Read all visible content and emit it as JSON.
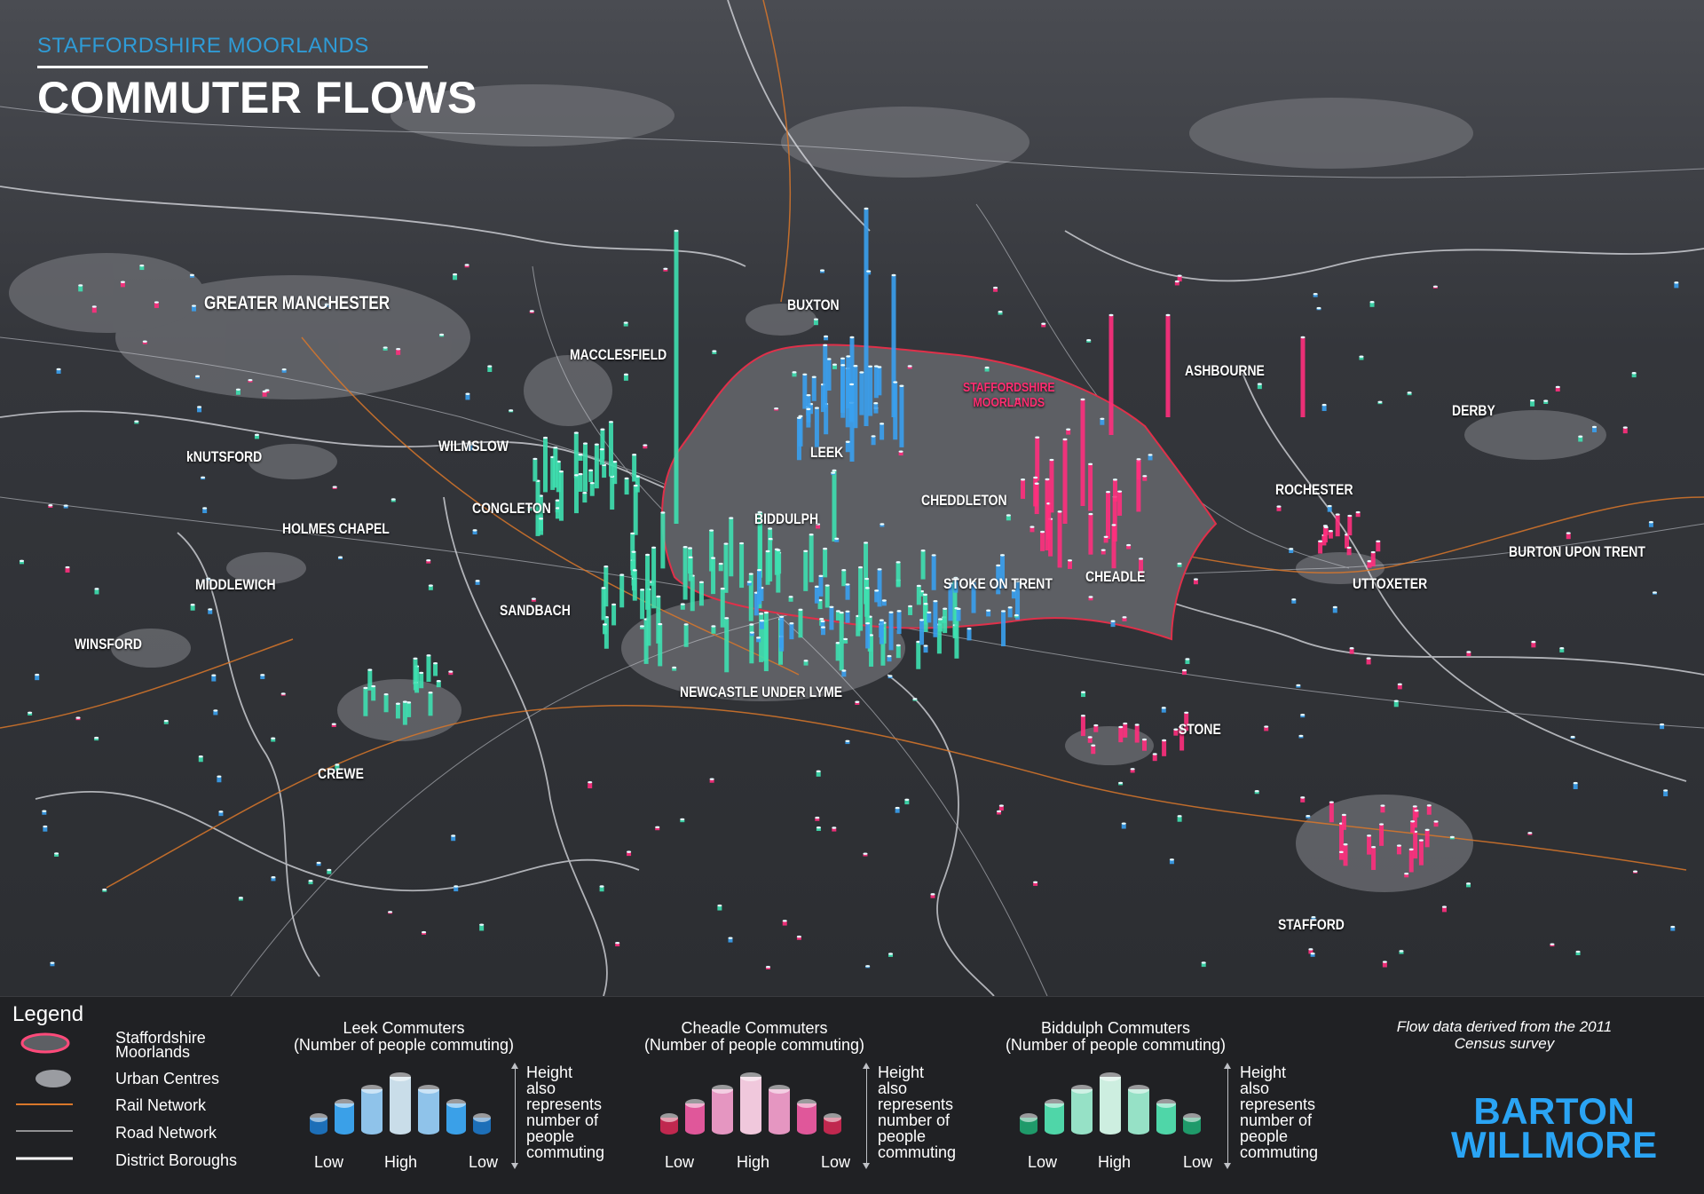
{
  "header": {
    "subtitle": "STAFFORDSHIRE MOORLANDS",
    "title": "COMMUTER FLOWS"
  },
  "colors": {
    "leek": "#3aa0ee",
    "cheadle": "#ff2f7d",
    "biddulph": "#3ee0b0",
    "moorlands_fill": "#5d5f64",
    "moorlands_outline": "#e0304a",
    "rail": "#d9772a",
    "road": "#cfd2d8",
    "urban": "#6d6f74",
    "background": "#2b2d31"
  },
  "places": {
    "greater_manchester": "GREATER MANCHESTER",
    "buxton": "BUXTON",
    "macclesfield": "MACCLESFIELD",
    "ashbourne": "ASHBOURNE",
    "derby": "DERBY",
    "knutsford": "kNUTSFORD",
    "wilmslow": "WILMSLOW",
    "leek": "LEEK",
    "rochester": "ROCHESTER",
    "congleton": "CONGLETON",
    "cheddleton": "CHEDDLETON",
    "biddulph": "BIDDULPH",
    "holmes_chapel": "HOLMES CHAPEL",
    "burton_upon_trent": "BURTON UPON TRENT",
    "middlewich": "MIDDLEWICH",
    "stoke_on_trent": "STOKE ON TRENT",
    "cheadle": "CHEADLE",
    "uttoxeter": "UTTOXETER",
    "sandbach": "SANDBACH",
    "winsford": "WINSFORD",
    "newcastle_under_lyme": "NEWCASTLE UNDER LYME",
    "stone": "STONE",
    "crewe": "CREWE",
    "stafford": "STAFFORD",
    "moorlands_line1": "STAFFORDSHIRE",
    "moorlands_line2": "MOORLANDS"
  },
  "legend": {
    "title": "Legend",
    "items": [
      {
        "label_line1": "Staffordshire",
        "label_line2": "Moorlands"
      },
      {
        "label_line1": "Urban Centres"
      },
      {
        "label_line1": "Rail Network"
      },
      {
        "label_line1": "Road Network"
      },
      {
        "label_line1": "District Boroughs"
      }
    ],
    "scales": [
      {
        "name": "Leek Commuters",
        "sub": "(Number of people commuting)",
        "low": "Low",
        "high": "High",
        "note": [
          "Height",
          "also",
          "represents",
          "number of",
          "people",
          "commuting"
        ]
      },
      {
        "name": "Cheadle Commuters",
        "sub": "(Number of people commuting)",
        "low": "Low",
        "high": "High",
        "note": [
          "Height",
          "also",
          "represents",
          "number of",
          "people",
          "commuting"
        ]
      },
      {
        "name": "Biddulph Commuters",
        "sub": "(Number of people commuting)",
        "low": "Low",
        "high": "High",
        "note": [
          "Height",
          "also",
          "represents",
          "number of",
          "people",
          "commuting"
        ]
      }
    ],
    "source_line1": "Flow data derived from the 2011",
    "source_line2": "Census survey",
    "brand_line1": "BARTON",
    "brand_line2": "WILLMORE"
  }
}
